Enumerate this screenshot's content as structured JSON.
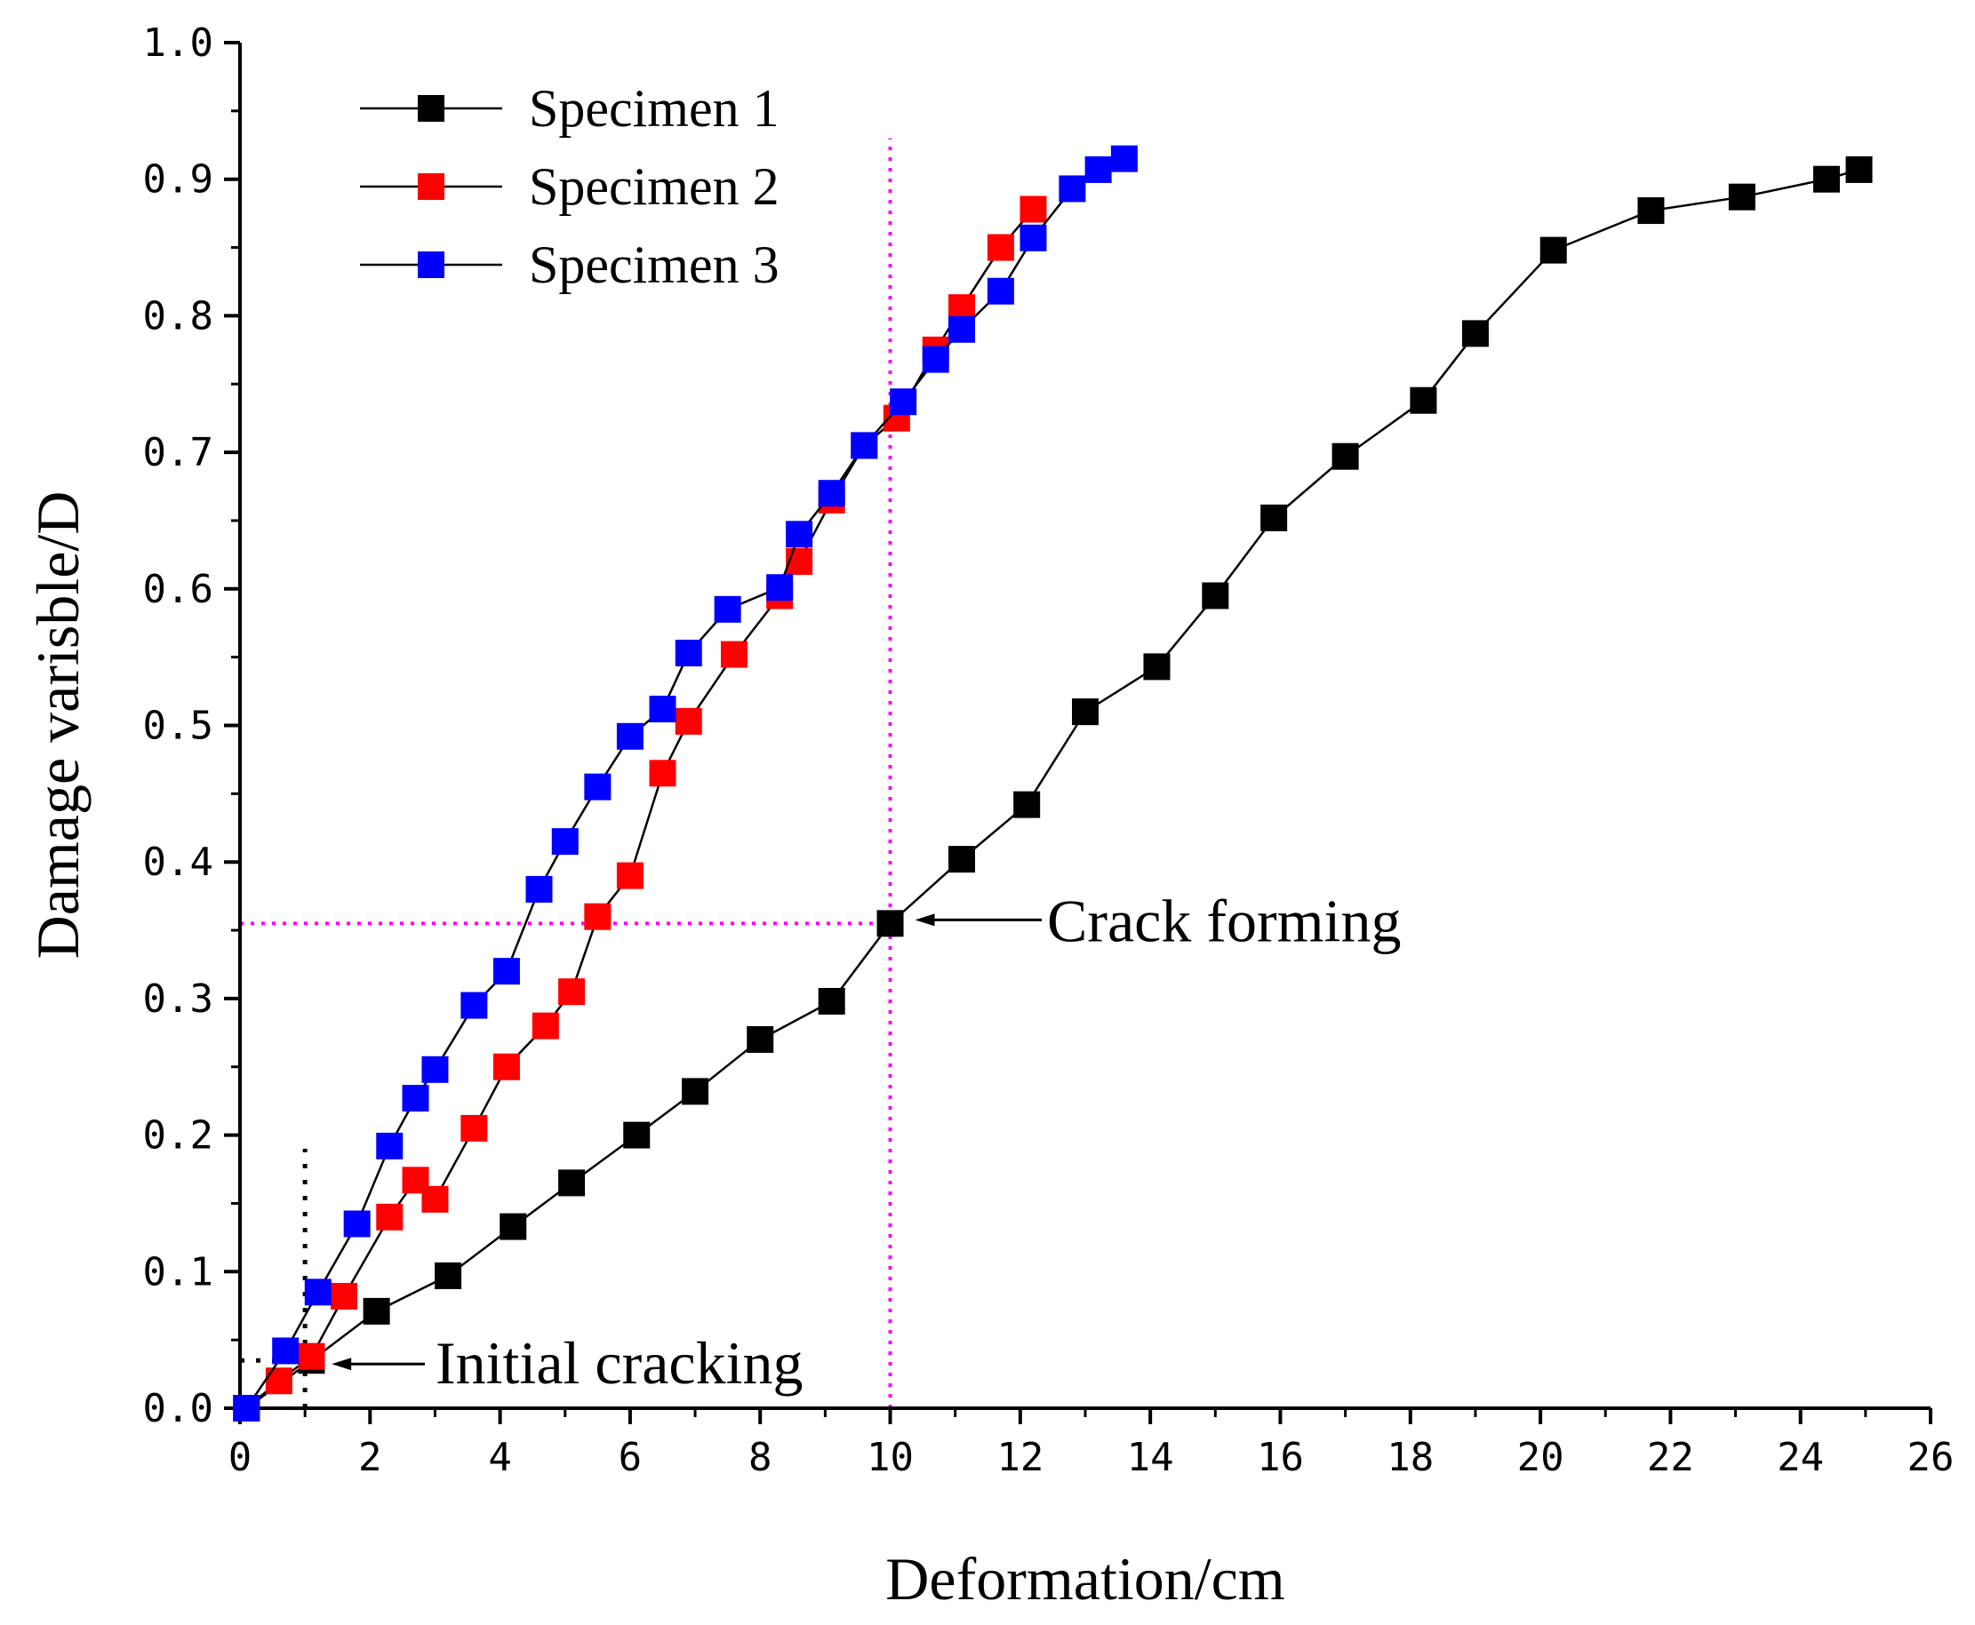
{
  "chart_data": {
    "type": "line",
    "xlabel": "Deformation/cm",
    "ylabel": "Damage varisble/D",
    "xlim": [
      0,
      26
    ],
    "ylim": [
      0,
      1.0
    ],
    "xticks": [
      0,
      2,
      4,
      6,
      8,
      10,
      12,
      14,
      16,
      18,
      20,
      22,
      24,
      26
    ],
    "yticks": [
      0.0,
      0.1,
      0.2,
      0.3,
      0.4,
      0.5,
      0.6,
      0.7,
      0.8,
      0.9,
      1.0
    ],
    "xtick_labels": [
      "0",
      "2",
      "4",
      "6",
      "8",
      "10",
      "12",
      "14",
      "16",
      "18",
      "20",
      "22",
      "24",
      "26"
    ],
    "ytick_labels": [
      "0.0",
      "0.1",
      "0.2",
      "0.3",
      "0.4",
      "0.5",
      "0.6",
      "0.7",
      "0.8",
      "0.9",
      "1.0"
    ],
    "legend_position": "top-left",
    "series": [
      {
        "name": "Specimen 1",
        "color": "#000000",
        "x": [
          0.1,
          1.1,
          2.1,
          3.2,
          4.2,
          5.1,
          6.1,
          7.0,
          8.0,
          9.1,
          10.0,
          11.1,
          12.1,
          13.0,
          14.1,
          15.0,
          15.9,
          17.0,
          18.2,
          19.0,
          20.2,
          21.7,
          23.1,
          24.4,
          24.9
        ],
        "y": [
          0.0,
          0.035,
          0.071,
          0.097,
          0.133,
          0.165,
          0.2,
          0.232,
          0.27,
          0.298,
          0.355,
          0.402,
          0.442,
          0.51,
          0.543,
          0.595,
          0.652,
          0.697,
          0.738,
          0.787,
          0.848,
          0.877,
          0.887,
          0.9,
          0.907
        ]
      },
      {
        "name": "Specimen 2",
        "color": "#ff0000",
        "x": [
          0.1,
          0.6,
          1.1,
          1.6,
          2.3,
          2.7,
          3.0,
          3.6,
          4.1,
          4.7,
          5.1,
          5.5,
          6.0,
          6.5,
          6.9,
          7.6,
          8.3,
          8.6,
          9.1,
          9.6,
          10.1,
          10.7,
          11.1,
          11.7,
          12.2
        ],
        "y": [
          0.0,
          0.02,
          0.038,
          0.082,
          0.14,
          0.167,
          0.153,
          0.205,
          0.25,
          0.28,
          0.305,
          0.36,
          0.39,
          0.465,
          0.503,
          0.552,
          0.595,
          0.62,
          0.665,
          0.705,
          0.725,
          0.775,
          0.806,
          0.85,
          0.878
        ]
      },
      {
        "name": "Specimen 3",
        "color": "#0000ff",
        "x": [
          0.1,
          0.7,
          1.2,
          1.8,
          2.3,
          2.7,
          3.0,
          3.6,
          4.1,
          4.6,
          5.0,
          5.5,
          6.0,
          6.5,
          6.9,
          7.5,
          8.3,
          8.6,
          9.1,
          9.6,
          10.2,
          10.7,
          11.1,
          11.7,
          12.2,
          12.8,
          13.2,
          13.6
        ],
        "y": [
          0.0,
          0.042,
          0.085,
          0.135,
          0.192,
          0.227,
          0.248,
          0.295,
          0.32,
          0.38,
          0.415,
          0.455,
          0.492,
          0.512,
          0.553,
          0.585,
          0.601,
          0.64,
          0.67,
          0.705,
          0.737,
          0.768,
          0.79,
          0.818,
          0.857,
          0.893,
          0.907,
          0.915
        ]
      }
    ],
    "annotations": [
      {
        "text": "Crack forming",
        "x": 10.0,
        "y": 0.355,
        "arrow_to": [
          10.0,
          0.355
        ]
      },
      {
        "text": "Initial cracking",
        "x": 1.0,
        "y": 0.035,
        "arrow_to": [
          1.0,
          0.035
        ]
      }
    ],
    "reference_lines": [
      {
        "type": "vertical",
        "x": 10.0,
        "style": "dotted",
        "color": "#ff00ff"
      },
      {
        "type": "horizontal",
        "y": 0.355,
        "x_range": [
          0,
          10.0
        ],
        "style": "dotted",
        "color": "#ff00ff"
      },
      {
        "type": "vertical",
        "x": 1.0,
        "y_range": [
          0,
          0.19
        ],
        "style": "dotted",
        "color": "#000000"
      },
      {
        "type": "horizontal",
        "y": 0.035,
        "x_range": [
          0,
          1.0
        ],
        "style": "dotted",
        "color": "#000000"
      }
    ]
  }
}
